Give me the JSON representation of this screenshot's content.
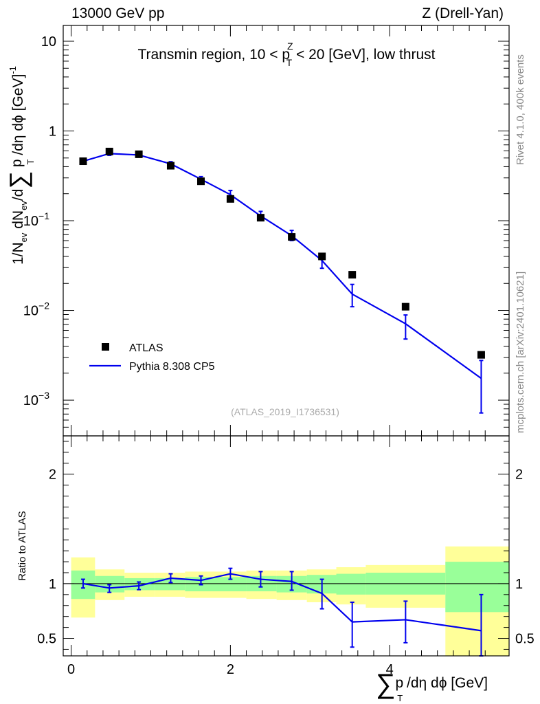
{
  "header": {
    "left": "13000 GeV pp",
    "right": "Z (Drell-Yan)"
  },
  "side": {
    "rivet": "Rivet 4.1.0,  400k events",
    "mcplots": "mcplots.cern.ch [arXiv:2401.10621]"
  },
  "watermark": "(ATLAS_2019_I1736531)",
  "colors": {
    "mc": "#0000ee",
    "band_inner": "#99ff99",
    "band_outer": "#ffff99",
    "data": "#000000"
  },
  "chart_data": [
    {
      "type": "scatter",
      "panel": "main",
      "title_parts": {
        "prefix": "Transmin region, 10 < p",
        "sup": "Z",
        "sub": "T",
        "suffix": " < 20 [GeV], low thrust"
      },
      "yscale": "log",
      "ylim": [
        0.0004,
        15
      ],
      "xlim": [
        -0.1,
        5.5
      ],
      "ylabel_parts": {
        "a": "1/N",
        "a_sub": "ev",
        "b": " dN",
        "b_sub": "ev",
        "c": "/d",
        "sum": "∑",
        "d": " p",
        "d_sub": "T",
        "e": " /dη dϕ  [GeV]",
        "e_sup": "-1"
      },
      "yticks": [
        {
          "value": 10,
          "base": "10",
          "exp": ""
        },
        {
          "value": 1,
          "base": "1",
          "exp": ""
        },
        {
          "value": 0.1,
          "base": "10",
          "exp": "−1"
        },
        {
          "value": 0.01,
          "base": "10",
          "exp": "−2"
        },
        {
          "value": 0.001,
          "base": "10",
          "exp": "−3"
        }
      ],
      "legend": {
        "position": "bottom-left",
        "entries": [
          {
            "label": "ATLAS",
            "kind": "marker"
          },
          {
            "label": "Pythia 8.308 CP5",
            "kind": "line"
          }
        ]
      },
      "series": [
        {
          "name": "ATLAS",
          "x": [
            0.15,
            0.48,
            0.85,
            1.25,
            1.63,
            2.0,
            2.38,
            2.77,
            3.15,
            3.53,
            4.2,
            5.15
          ],
          "y": [
            0.46,
            0.59,
            0.55,
            0.41,
            0.275,
            0.175,
            0.108,
            0.066,
            0.04,
            0.025,
            0.011,
            0.0032
          ]
        },
        {
          "name": "Pythia 8.308 CP5",
          "x": [
            0.15,
            0.48,
            0.85,
            1.25,
            1.63,
            2.0,
            2.38,
            2.77,
            3.15,
            3.53,
            4.2,
            5.15
          ],
          "y": [
            0.46,
            0.56,
            0.54,
            0.43,
            0.29,
            0.195,
            0.113,
            0.068,
            0.036,
            0.0152,
            0.0071,
            0.00175
          ],
          "yerr_lo": [
            0.015,
            0.025,
            0.02,
            0.02,
            0.015,
            0.017,
            0.01,
            0.008,
            0.0065,
            0.0042,
            0.0023,
            0.00103
          ],
          "yerr_hi": [
            0.015,
            0.025,
            0.02,
            0.025,
            0.02,
            0.022,
            0.014,
            0.01,
            0.0065,
            0.0043,
            0.0018,
            0.00102
          ]
        }
      ]
    },
    {
      "type": "line",
      "panel": "ratio",
      "ylabel": "Ratio to ATLAS",
      "xlabel_parts": {
        "sum": "∑",
        "a": "p",
        "a_sub": "T",
        "b": " /dη dϕ [GeV]"
      },
      "ylim": [
        0.34,
        2.35
      ],
      "xlim": [
        -0.1,
        5.5
      ],
      "yticks": [
        0.5,
        1,
        2
      ],
      "ytick_labels": [
        "0.5",
        "1",
        "2"
      ],
      "xticks": [
        0,
        2,
        4
      ],
      "xtick_labels": [
        "0",
        "2",
        "4"
      ],
      "reference": 1,
      "bands": {
        "edges": [
          0.0,
          0.3,
          0.67,
          1.05,
          1.43,
          1.82,
          2.2,
          2.58,
          2.96,
          3.33,
          3.7,
          4.7,
          5.5
        ],
        "inner_lo": [
          0.86,
          0.92,
          0.94,
          0.94,
          0.93,
          0.93,
          0.93,
          0.92,
          0.91,
          0.9,
          0.9,
          0.74
        ],
        "inner_hi": [
          1.12,
          1.07,
          1.05,
          1.05,
          1.06,
          1.06,
          1.07,
          1.07,
          1.08,
          1.09,
          1.1,
          1.2
        ],
        "outer_lo": [
          0.69,
          0.85,
          0.88,
          0.88,
          0.87,
          0.87,
          0.86,
          0.85,
          0.83,
          0.81,
          0.78,
          0.34
        ],
        "outer_hi": [
          1.24,
          1.13,
          1.1,
          1.1,
          1.11,
          1.11,
          1.12,
          1.12,
          1.13,
          1.15,
          1.17,
          1.34
        ]
      },
      "series": [
        {
          "name": "Pythia 8.308 CP5 / ATLAS",
          "x": [
            0.15,
            0.48,
            0.85,
            1.25,
            1.63,
            2.0,
            2.38,
            2.77,
            3.15,
            3.53,
            4.2,
            5.15
          ],
          "y": [
            1.0,
            0.96,
            0.98,
            1.05,
            1.03,
            1.09,
            1.04,
            1.02,
            0.91,
            0.65,
            0.67,
            0.57
          ],
          "yerr_lo": [
            0.04,
            0.04,
            0.035,
            0.04,
            0.04,
            0.05,
            0.07,
            0.08,
            0.14,
            0.23,
            0.21,
            0.23
          ],
          "yerr_hi": [
            0.04,
            0.03,
            0.035,
            0.04,
            0.04,
            0.05,
            0.07,
            0.09,
            0.13,
            0.18,
            0.17,
            0.33
          ]
        }
      ]
    }
  ]
}
